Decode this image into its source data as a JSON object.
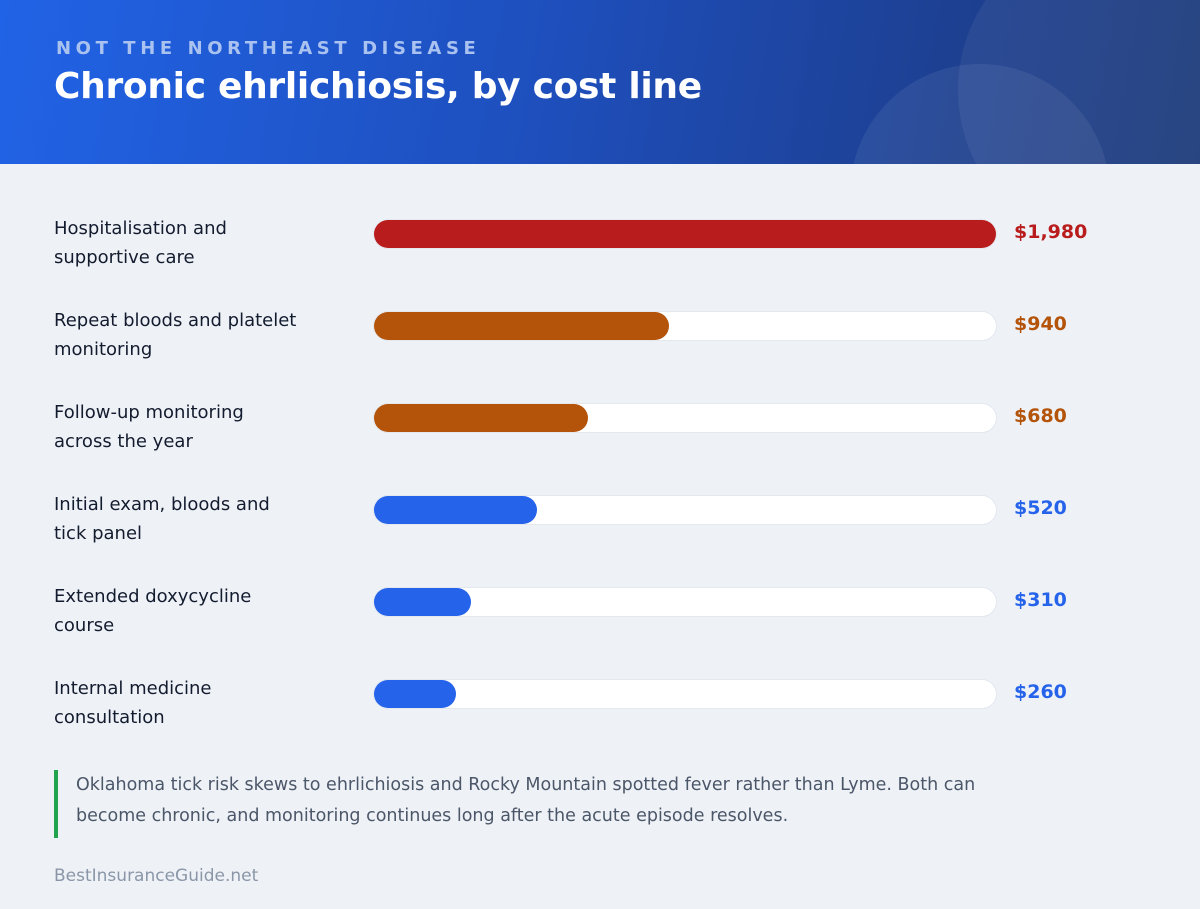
{
  "header": {
    "eyebrow": "NOT THE NORTHEAST DISEASE",
    "title": "Chronic ehrlichiosis, by cost line"
  },
  "colors": {
    "high": "#b91c1c",
    "medium": "#b4530a",
    "low": "#2563eb",
    "note_accent": "#22a350"
  },
  "chart_data": {
    "type": "bar",
    "orientation": "horizontal",
    "title": "Chronic ehrlichiosis, by cost line",
    "xlim": [
      0,
      1980
    ],
    "grid": false,
    "categories": [
      "Hospitalisation and supportive care",
      "Repeat bloods and platelet monitoring",
      "Follow-up monitoring across the year",
      "Initial exam, bloods and tick panel",
      "Extended doxycycline course",
      "Internal medicine consultation"
    ],
    "label_lines": [
      [
        "Hospitalisation and",
        "supportive care"
      ],
      [
        "Repeat bloods and platelet",
        "monitoring"
      ],
      [
        "Follow-up monitoring",
        "across the year"
      ],
      [
        "Initial exam, bloods and",
        "tick panel"
      ],
      [
        "Extended doxycycline",
        "course"
      ],
      [
        "Internal medicine",
        "consultation"
      ]
    ],
    "values": [
      1980,
      940,
      680,
      520,
      310,
      260
    ],
    "value_labels": [
      "$1,980",
      "$940",
      "$680",
      "$520",
      "$310",
      "$260"
    ],
    "tiers": [
      "high",
      "medium",
      "medium",
      "low",
      "low",
      "low"
    ]
  },
  "note": {
    "text": "Oklahoma tick risk skews to ehrlichiosis and Rocky Mountain spotted fever rather than Lyme. Both can become chronic, and monitoring continues long after the acute episode resolves."
  },
  "footer": {
    "brand": "BestInsuranceGuide.net"
  }
}
